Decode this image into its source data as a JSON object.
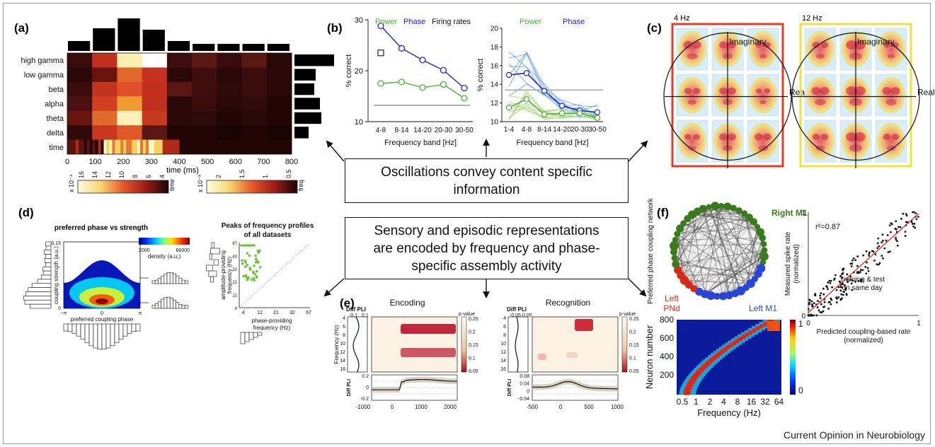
{
  "panels": {
    "a": {
      "label": "(a)",
      "rows": [
        "high gamma",
        "low gamma",
        "beta",
        "alpha",
        "theta",
        "delta",
        "time"
      ],
      "xticks": [
        "0",
        "100",
        "200",
        "300",
        "400",
        "500",
        "600",
        "700",
        "800"
      ],
      "xlabel": "time (ms)",
      "cb1": {
        "exp": "x 10⁻⁴",
        "ticks": [
          "16",
          "14",
          "12",
          "10",
          "8",
          "6",
          "4"
        ],
        "name": "time"
      },
      "cb2": {
        "exp": "x 10⁻³",
        "ticks": [
          "2",
          "1.5",
          "1",
          "0.5"
        ],
        "name": "freq"
      }
    },
    "b": {
      "label": "(b)",
      "left": {
        "legend": [
          "Power",
          "Phase",
          "Firing rates"
        ],
        "ylabel": "% correct",
        "yticks": [
          "30",
          "20",
          "10"
        ],
        "xticks": [
          "4-8",
          "8-14",
          "14-20",
          "20-30",
          "30-50"
        ],
        "xlabel": "Frequency band [Hz]"
      },
      "right": {
        "legend": [
          "Power",
          "Phase"
        ],
        "ylabel": "% correct",
        "yticks": [
          "20",
          "18",
          "16",
          "14",
          "12",
          "10"
        ],
        "xticks": [
          "1-4",
          "4-8",
          "8-14",
          "14-20",
          "20-30",
          "30-50"
        ],
        "xlabel": "Frequency band [Hz]"
      }
    },
    "c": {
      "label": "(c)",
      "title1": "4 Hz",
      "title2": "12 Hz",
      "axis_im": "Imaginary",
      "axis_re": "Real"
    },
    "d": {
      "label": "(d)",
      "t1": "preferred phase vs strength",
      "cbar_min": "2000",
      "cbar_max": "66000",
      "cbar_name": "density (a.u.)",
      "ylabel": "coupling strength (a.u.)",
      "ytop": "0.15",
      "yzero": "0",
      "xlabel": "preferred coupling phase",
      "xticks": [
        "−π",
        "0",
        "π"
      ],
      "t2a": "Peaks of frequency profiles",
      "t2b": "of all datasets",
      "scatter_ylabel1": "amplitude-providing",
      "scatter_ylabel2": "frequency (Hz)",
      "scatter_yticks": [
        "67",
        "43",
        "32",
        "21",
        "12",
        "4"
      ],
      "scatter_xticks": [
        "4",
        "12",
        "21",
        "32",
        "67"
      ],
      "scatter_xlabel1": "phase-providing",
      "scatter_xlabel2": "frequency (Hz)"
    },
    "e": {
      "label": "(e)",
      "t1": "Encoding",
      "t2": "Recognition",
      "diff_pli": "Diff PLI",
      "enc_top_ticks": [
        "-0.1",
        "0.1"
      ],
      "rec_top_ticks": [
        "-0.05",
        "0.05"
      ],
      "ylabel": "Frequency (Hz)",
      "yticks": [
        "4",
        "6",
        "8",
        "10",
        "12",
        "14",
        "16"
      ],
      "pvalue": "p-value",
      "pticks": [
        "0.25",
        "0.2",
        "0.15",
        "0.1",
        "0.05"
      ],
      "enc_bot_y": [
        "0.2",
        "0",
        "-0.2"
      ],
      "enc_bot_x": [
        "-1000",
        "0",
        "1000",
        "2000"
      ],
      "rec_bot_y": [
        "0.08",
        "0.04",
        "0",
        "-0.04"
      ],
      "rec_bot_x": [
        "-500",
        "0",
        "500",
        "1000"
      ]
    },
    "f": {
      "label": "(f)",
      "ring_ylabel": "Preferred phase coupling network",
      "right_m1": "Right M1",
      "left_pnd_1": "Left",
      "left_pnd_2": "PNd",
      "left_m1": "Left M1",
      "heat_ylabel": "Neuron number",
      "heat_yticks": [
        "800",
        "600",
        "400",
        "200"
      ],
      "heat_xticks": [
        "0.5",
        "1",
        "2",
        "4",
        "8",
        "16",
        "32",
        "64"
      ],
      "heat_xlabel": "Frequency (Hz)",
      "cb_top": "1",
      "cb_bot": "0",
      "scatter_ylabel1": "Measured spike rate",
      "scatter_ylabel2": "(normalized)",
      "scatter_xlabel1": "Predicted coupling-based rate",
      "scatter_xlabel2": "(normalized)",
      "r2": "r²=0.87",
      "note1": "Training & test",
      "note2": "on same day",
      "tick1": "1",
      "tick0": "0"
    }
  },
  "center": {
    "box1_line1": "Oscillations convey content specific",
    "box1_line2": "information",
    "box2_line1": "Sensory and episodic representations",
    "box2_line2": "are encoded by frequency and phase-",
    "box2_line3": "specific assembly activity"
  },
  "credit": "Current Opinion in Neurobiology",
  "chart_data": [
    {
      "type": "heatmap",
      "panel": "a",
      "rows": [
        "high gamma",
        "low gamma",
        "beta",
        "alpha",
        "theta",
        "delta",
        "time"
      ],
      "x": [
        0,
        100,
        200,
        300,
        400,
        500,
        600,
        700,
        800
      ],
      "xlabel": "time (ms)"
    },
    {
      "type": "line",
      "panel": "b-left",
      "categories": [
        "4-8",
        "8-14",
        "14-20",
        "20-30",
        "30-50"
      ],
      "series": [
        {
          "name": "Phase",
          "values": [
            28.8,
            24.4,
            22.1,
            20.1,
            16.6
          ]
        },
        {
          "name": "Power",
          "values": [
            17.5,
            17.8,
            16.7,
            17.3,
            14.6
          ]
        }
      ],
      "markers": [
        {
          "name": "Firing rates",
          "x": "4-8",
          "y": 23.5
        }
      ],
      "baseline": 13.2,
      "ylabel": "% correct",
      "xlabel": "Frequency band [Hz]",
      "ylim": [
        10,
        30
      ]
    },
    {
      "type": "line",
      "panel": "b-right",
      "categories": [
        "1-4",
        "4-8",
        "8-14",
        "14-20",
        "20-30",
        "30-50"
      ],
      "series": [
        {
          "name": "Phase",
          "values": [
            15.0,
            15.2,
            13.3,
            11.7,
            11.2,
            11.0
          ]
        },
        {
          "name": "Power",
          "values": [
            11.5,
            12.4,
            10.8,
            10.9,
            10.9,
            10.4
          ]
        }
      ],
      "baseline": 13.4,
      "ylabel": "% correct",
      "xlabel": "Frequency band [Hz]",
      "ylim": [
        10,
        20
      ]
    },
    {
      "type": "scatter",
      "panel": "f",
      "xlabel": "Predicted coupling-based rate (normalized)",
      "ylabel": "Measured spike rate (normalized)",
      "xlim": [
        0,
        1
      ],
      "ylim": [
        0,
        1
      ]
    }
  ]
}
